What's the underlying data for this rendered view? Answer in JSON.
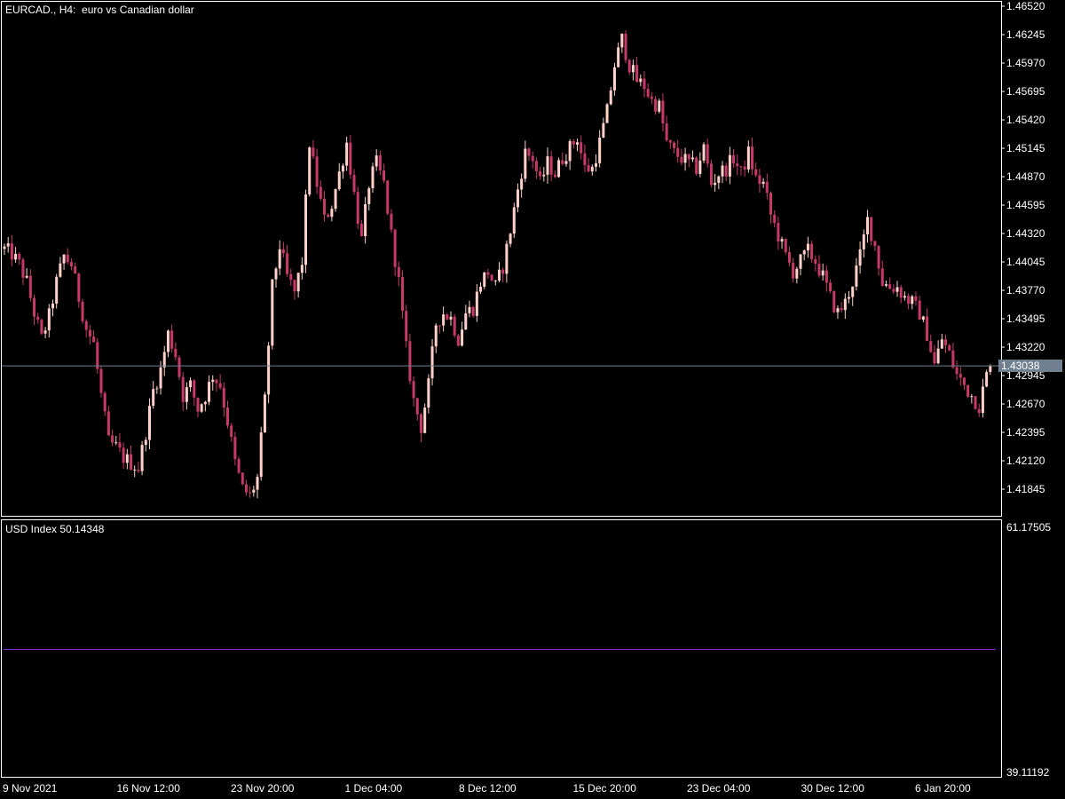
{
  "chart_header": {
    "symbol": "EURCAD.",
    "timeframe": "H4:",
    "description": "euro vs Canadian dollar"
  },
  "indicator_header": {
    "name": "USD Index",
    "value": "50.14348"
  },
  "current_price": "1.43038",
  "price_axis_labels": [
    "1.46520",
    "1.46245",
    "1.45970",
    "1.45695",
    "1.45420",
    "1.45145",
    "1.44870",
    "1.44595",
    "1.44320",
    "1.44045",
    "1.43770",
    "1.43495",
    "1.43220",
    "1.42945",
    "1.42670",
    "1.42395",
    "1.42120",
    "1.41845"
  ],
  "indicator_axis_labels": {
    "top": "61.17505",
    "bottom": "39.11192"
  },
  "time_axis_labels": [
    "9 Nov 2021",
    "16 Nov 12:00",
    "23 Nov 20:00",
    "1 Dec 04:00",
    "8 Dec 12:00",
    "15 Dec 20:00",
    "23 Dec 04:00",
    "30 Dec 12:00",
    "6 Jan 20:00"
  ],
  "colors": {
    "background": "#000000",
    "frame": "#ffffff",
    "bull_candle": "#ffd1c8",
    "bear_candle": "#c8386a",
    "current_price_line": "#708090",
    "current_price_box": "#708090",
    "indicator_line": "#8a2be2"
  },
  "chart_data": [
    {
      "type": "candlestick",
      "title": "EURCAD., H4:  euro vs Canadian dollar",
      "ylim": [
        1.4171,
        1.4666
      ],
      "y_ticks": [
        1.4652,
        1.46245,
        1.4597,
        1.45695,
        1.4542,
        1.45145,
        1.4487,
        1.44595,
        1.4432,
        1.44045,
        1.4377,
        1.43495,
        1.4322,
        1.42945,
        1.4267,
        1.42395,
        1.4212,
        1.41845
      ],
      "x_ticks": [
        "9 Nov 2021",
        "16 Nov 12:00",
        "23 Nov 20:00",
        "1 Dec 04:00",
        "8 Dec 12:00",
        "15 Dec 20:00",
        "23 Dec 04:00",
        "30 Dec 12:00",
        "6 Jan 20:00"
      ],
      "current_price": 1.43038,
      "close_path": [
        1.4417,
        1.4412,
        1.4402,
        1.4385,
        1.4355,
        1.433,
        1.4352,
        1.4385,
        1.441,
        1.4402,
        1.437,
        1.434,
        1.4325,
        1.4275,
        1.423,
        1.4225,
        1.4215,
        1.421,
        1.4205,
        1.424,
        1.428,
        1.43,
        1.4335,
        1.4315,
        1.4275,
        1.4285,
        1.4262,
        1.4275,
        1.4295,
        1.4285,
        1.425,
        1.421,
        1.4185,
        1.4178,
        1.4195,
        1.427,
        1.438,
        1.442,
        1.439,
        1.4375,
        1.4405,
        1.452,
        1.448,
        1.4445,
        1.446,
        1.449,
        1.452,
        1.447,
        1.4425,
        1.448,
        1.45,
        1.448,
        1.443,
        1.4385,
        1.432,
        1.427,
        1.4245,
        1.4285,
        1.4345,
        1.4355,
        1.435,
        1.433,
        1.4355,
        1.436,
        1.4385,
        1.4395,
        1.438,
        1.44,
        1.4435,
        1.4475,
        1.451,
        1.4505,
        1.448,
        1.45,
        1.449,
        1.4505,
        1.4515,
        1.4525,
        1.4495,
        1.4495,
        1.452,
        1.455,
        1.4595,
        1.462,
        1.4595,
        1.458,
        1.4575,
        1.456,
        1.4555,
        1.452,
        1.451,
        1.4505,
        1.45,
        1.4495,
        1.4515,
        1.448,
        1.449,
        1.4495,
        1.4505,
        1.449,
        1.451,
        1.4485,
        1.448,
        1.445,
        1.443,
        1.441,
        1.4395,
        1.4405,
        1.4415,
        1.4405,
        1.439,
        1.437,
        1.4355,
        1.4365,
        1.4385,
        1.441,
        1.4445,
        1.442,
        1.4385,
        1.438,
        1.438,
        1.437,
        1.4365,
        1.4355,
        1.4335,
        1.4305,
        1.433,
        1.4315,
        1.4295,
        1.4285,
        1.4275,
        1.4265,
        1.4295,
        1.4305
      ]
    },
    {
      "type": "line",
      "title": "USD Index 50.14348",
      "ylim": [
        39.11192,
        61.17505
      ],
      "series": [
        {
          "name": "USD Index",
          "values": [
            50.14348,
            50.14348
          ]
        }
      ]
    }
  ]
}
